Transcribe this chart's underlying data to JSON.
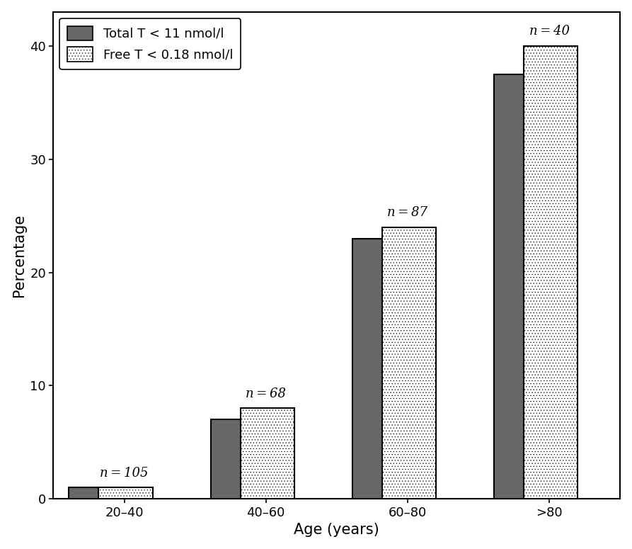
{
  "categories": [
    "20–40",
    "40–60",
    "60–80",
    ">80"
  ],
  "total_T_values": [
    1.0,
    7.0,
    23.0,
    37.5
  ],
  "free_T_values": [
    1.0,
    8.0,
    24.0,
    40.0
  ],
  "n_labels": [
    "n = 105",
    "n = 68",
    "n = 87",
    "n = 40"
  ],
  "total_T_color": "#676767",
  "ylabel": "Percentage",
  "xlabel": "Age (years)",
  "ylim": [
    0,
    43
  ],
  "yticks": [
    0,
    10,
    20,
    30,
    40
  ],
  "legend_total": "Total T < 11 nmol/l",
  "legend_free": "Free T < 0.18 nmol/l",
  "bar_width": 0.38,
  "bar_gap": 0.02,
  "group_centers": [
    0.5,
    1.5,
    2.5,
    3.5
  ],
  "background_color": "#ffffff",
  "n_label_fontsize": 13,
  "axis_label_fontsize": 15,
  "tick_fontsize": 13,
  "legend_fontsize": 13
}
